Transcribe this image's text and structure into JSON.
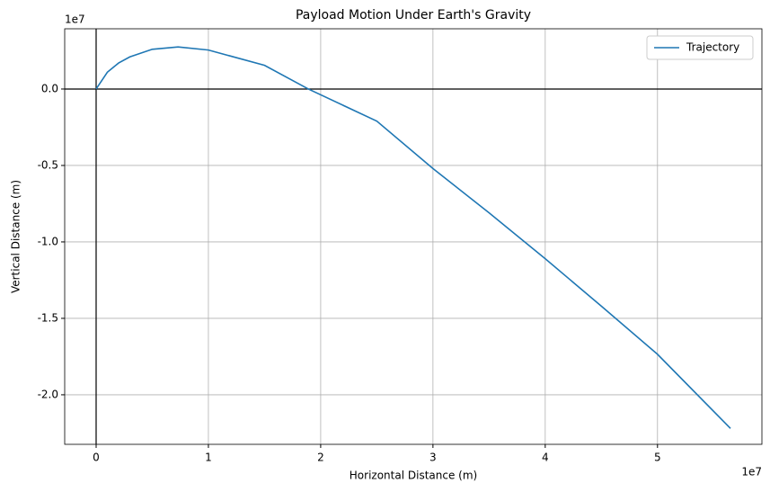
{
  "chart_data": {
    "type": "line",
    "title": "Payload Motion Under Earth's Gravity",
    "x_label": "Horizontal Distance (m)",
    "y_label": "Vertical Distance (m)",
    "x_offset_label": "1e7",
    "y_offset_label": "1e7",
    "x": [
      0,
      0.1,
      0.2,
      0.3,
      0.5,
      0.73,
      1.0,
      1.5,
      1.89,
      2.5,
      3,
      3.5,
      4,
      4.5,
      5,
      5.65
    ],
    "series": [
      {
        "name": "Trajectory",
        "color": "#1f77b4",
        "values": [
          0,
          0.11,
          0.17,
          0.21,
          0.26,
          0.275,
          0.255,
          0.155,
          0,
          -0.21,
          -0.52,
          -0.81,
          -1.11,
          -1.42,
          -1.735,
          -2.22
        ]
      }
    ],
    "xlim": [
      -0.28,
      5.93
    ],
    "ylim": [
      -2.324,
      0.394
    ],
    "xticks": [
      0,
      1,
      2,
      3,
      4,
      5
    ],
    "yticks": [
      {
        "value": 0,
        "label": "0.0"
      },
      {
        "value": -0.5,
        "label": "-0.5"
      },
      {
        "value": -1,
        "label": "-1.0"
      },
      {
        "value": -1.5,
        "label": "-1.5"
      },
      {
        "value": -2,
        "label": "-2.0"
      }
    ],
    "grid": true,
    "legend": "upper right"
  }
}
